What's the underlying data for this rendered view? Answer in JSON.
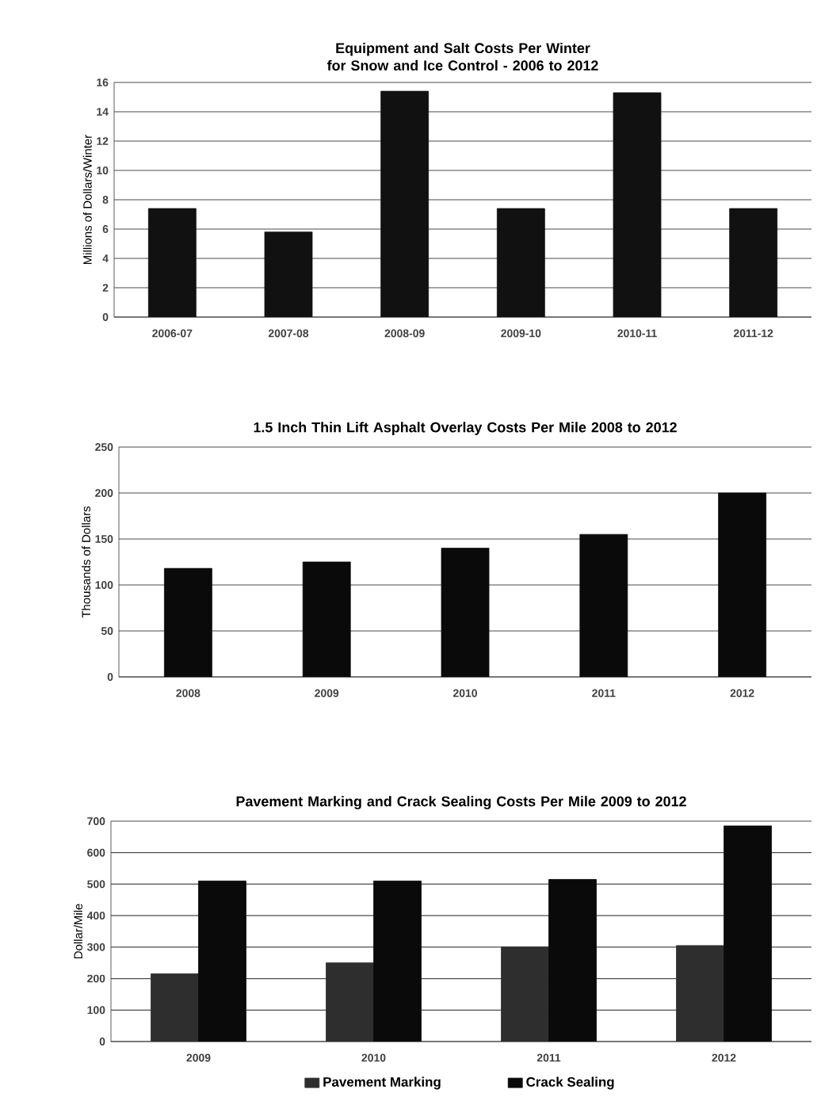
{
  "chart_data": [
    {
      "type": "bar",
      "title": "Equipment and Salt Costs Per Winter for Snow and Ice Control - 2006 to 2012",
      "ylabel": "Millions of Dollars/Winter",
      "categories": [
        "2006-07",
        "2007-08",
        "2008-09",
        "2009-10",
        "2010-11",
        "2011-12"
      ],
      "values": [
        7.4,
        5.8,
        15.4,
        7.4,
        15.3,
        7.4
      ],
      "color": "#111111",
      "ylim": [
        0,
        16
      ],
      "yticks": [
        0,
        2,
        4,
        6,
        8,
        10,
        12,
        14,
        16
      ],
      "grid": "y"
    },
    {
      "type": "bar",
      "title": "1.5 Inch Thin Lift Asphalt Overlay Costs Per Mile 2008 to 2012",
      "ylabel": "Thousands of Dollars",
      "categories": [
        "2008",
        "2009",
        "2010",
        "2011",
        "2012"
      ],
      "values": [
        118,
        125,
        140,
        155,
        200
      ],
      "color": "#0a0a0a",
      "ylim": [
        0,
        250
      ],
      "yticks": [
        0,
        50,
        100,
        150,
        200,
        250
      ],
      "grid": "y"
    },
    {
      "type": "bar",
      "title": "Pavement Marking and Crack Sealing Costs Per Mile 2009 to 2012",
      "ylabel": "Dollar/Mile",
      "categories": [
        "2009",
        "2010",
        "2011",
        "2012"
      ],
      "series": [
        {
          "name": "Pavement Marking",
          "color": "#2e2e2e",
          "values": [
            215,
            250,
            300,
            305
          ]
        },
        {
          "name": "Crack Sealing",
          "color": "#0a0a0a",
          "values": [
            510,
            510,
            515,
            685
          ]
        }
      ],
      "ylim": [
        0,
        700
      ],
      "yticks": [
        0,
        100,
        200,
        300,
        400,
        500,
        600,
        700
      ],
      "grid": "y",
      "legend": "bottom"
    }
  ]
}
